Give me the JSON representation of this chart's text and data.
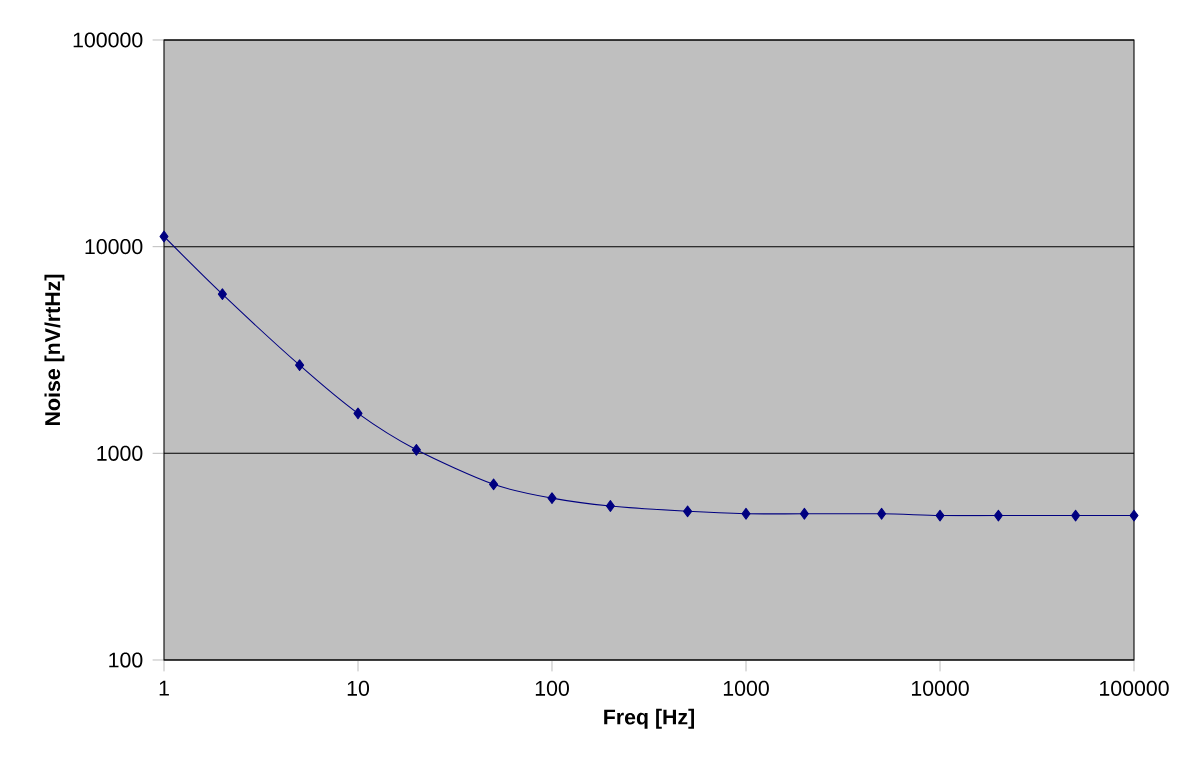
{
  "chart_data": {
    "type": "line",
    "xlabel": "Freq [Hz]",
    "ylabel": "Noise [nV/rtHz]",
    "x": [
      1,
      2,
      5,
      10,
      20,
      50,
      100,
      200,
      500,
      1000,
      2000,
      5000,
      10000,
      20000,
      50000,
      100000
    ],
    "series": [
      {
        "color": "#000080",
        "values": [
          11200,
          5890,
          2670,
          1560,
          1040,
          708,
          607,
          556,
          524,
          510,
          510,
          510,
          500,
          500,
          500,
          500
        ]
      }
    ],
    "log": "xy",
    "xlim": [
      1,
      100000
    ],
    "ylim": [
      100,
      100000
    ],
    "xticks": [
      1,
      10,
      100,
      1000,
      10000,
      100000
    ],
    "yticks": [
      100,
      1000,
      10000,
      100000
    ],
    "grid": "y",
    "marker": "diamond"
  }
}
